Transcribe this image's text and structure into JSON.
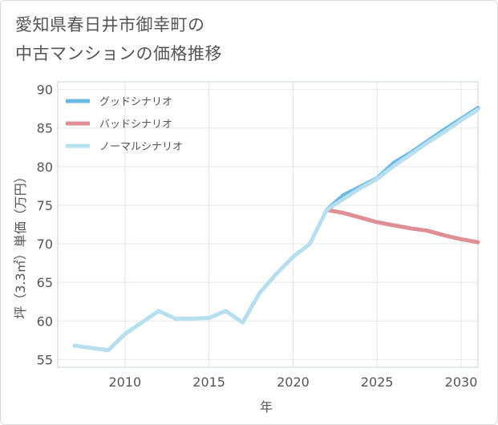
{
  "title_lines": [
    "愛知県春日井市御幸町の",
    "中古マンションの価格推移"
  ],
  "chart_data": {
    "type": "line",
    "title": "愛知県春日井市御幸町の中古マンションの価格推移",
    "xlabel": "年",
    "ylabel": "坪（3.3㎡）単価（万円）",
    "xlim": [
      2006,
      2031
    ],
    "ylim": [
      54,
      91
    ],
    "xticks": [
      2010,
      2015,
      2020,
      2025,
      2030
    ],
    "yticks": [
      55,
      60,
      65,
      70,
      75,
      80,
      85,
      90
    ],
    "legend_position": "top-left",
    "series": [
      {
        "name": "グッドシナリオ",
        "color": "#6bb8e3",
        "x": [
          2022,
          2023,
          2024,
          2025,
          2026,
          2027,
          2028,
          2029,
          2030,
          2031
        ],
        "values": [
          74.4,
          76.3,
          77.4,
          78.5,
          80.5,
          81.8,
          83.3,
          84.8,
          86.2,
          87.6
        ]
      },
      {
        "name": "バッドシナリオ",
        "color": "#e08e96",
        "x": [
          2022,
          2023,
          2024,
          2025,
          2026,
          2027,
          2028,
          2029,
          2030,
          2031
        ],
        "values": [
          74.4,
          74.0,
          73.4,
          72.8,
          72.4,
          72.0,
          71.7,
          71.1,
          70.6,
          70.2
        ]
      },
      {
        "name": "ノーマルシナリオ",
        "color": "#b7dff0",
        "x": [
          2007,
          2008,
          2009,
          2010,
          2011,
          2012,
          2013,
          2014,
          2015,
          2016,
          2017,
          2018,
          2019,
          2020,
          2021,
          2022,
          2023,
          2024,
          2025,
          2026,
          2027,
          2028,
          2029,
          2030,
          2031
        ],
        "values": [
          56.8,
          56.5,
          56.2,
          58.3,
          59.8,
          61.3,
          60.3,
          60.3,
          60.4,
          61.3,
          59.8,
          63.6,
          66.1,
          68.3,
          70.0,
          74.4,
          75.8,
          77.2,
          78.4,
          80.1,
          81.6,
          83.1,
          84.5,
          86.0,
          87.4
        ]
      }
    ]
  }
}
